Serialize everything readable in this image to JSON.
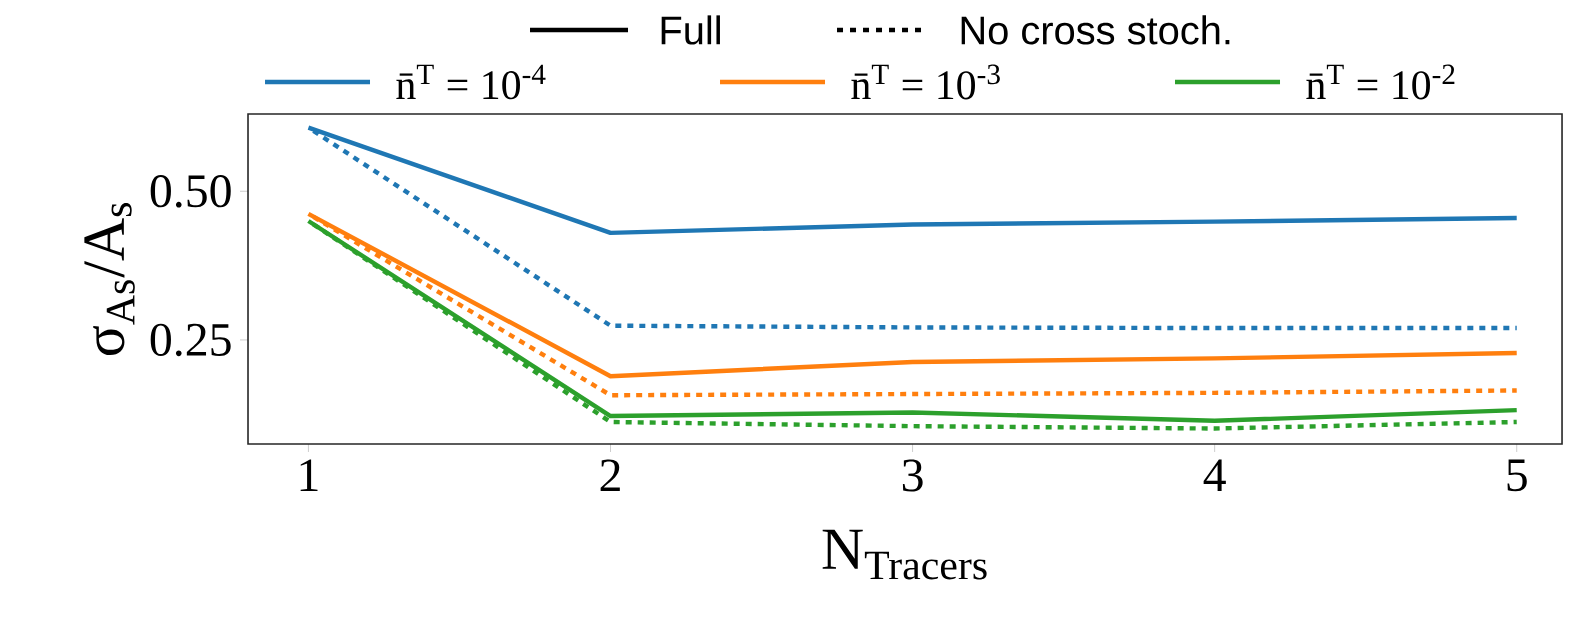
{
  "chart_data": {
    "type": "line",
    "xlabel": "N$_{Tracers}$",
    "ylabel": "σ$_{As}$/A$_{s}$",
    "x": [
      1,
      2,
      3,
      4,
      5
    ],
    "series": [
      {
        "name": "n̄$^{T}$ = 10$^{-4}$",
        "color": "#1f77b4",
        "line_style": "solid",
        "values": [
          0.607,
          0.43,
          0.444,
          0.449,
          0.455
        ]
      },
      {
        "color": "#1f77b4",
        "line_style": "dotted",
        "values": [
          0.607,
          0.274,
          0.271,
          0.27,
          0.27
        ]
      },
      {
        "name": "n̄$^{T}$ = 10$^{-3}$",
        "color": "#ff7f0e",
        "line_style": "solid",
        "values": [
          0.462,
          0.189,
          0.213,
          0.219,
          0.228
        ]
      },
      {
        "color": "#ff7f0e",
        "line_style": "dotted",
        "values": [
          0.462,
          0.157,
          0.159,
          0.161,
          0.165
        ]
      },
      {
        "name": "n̄$^{T}$ = 10$^{-2}$",
        "color": "#2ca02c",
        "line_style": "solid",
        "values": [
          0.45,
          0.122,
          0.128,
          0.114,
          0.132
        ]
      },
      {
        "color": "#2ca02c",
        "line_style": "dotted",
        "values": [
          0.45,
          0.112,
          0.105,
          0.101,
          0.112
        ]
      }
    ],
    "annotations": [
      "Full",
      "No cross stoch."
    ],
    "xlim": [
      0.8,
      5.15
    ],
    "ylim": [
      0.075,
      0.63
    ],
    "xticks": [
      1,
      2,
      3,
      4,
      5
    ],
    "yticks": [
      0.25,
      {
        "value": 0.5,
        "label": "0.50"
      }
    ],
    "legend": "top",
    "grid": false,
    "marker": "none"
  }
}
